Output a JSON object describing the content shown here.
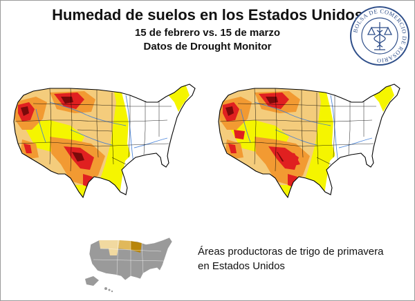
{
  "title": "Humedad de suelos en los Estados Unidos",
  "subtitle_dates": "15 de febrero vs. 15 de marzo",
  "subtitle_source": "Datos de Drought Monitor",
  "seal": {
    "text": "BOLSA DE COMERCIO DE ROSARIO",
    "color": "#2f4f8a"
  },
  "maps": [
    {
      "name": "15 de febrero"
    },
    {
      "name": "15 de marzo"
    }
  ],
  "caption": {
    "line1": "Áreas productoras de trigo de primavera",
    "line2": "en Estados Unidos"
  },
  "colors": {
    "abnormally_dry": "#f5f500",
    "moderate_drought": "#f4cc7c",
    "severe_drought": "#f29a32",
    "extreme_drought": "#e02020",
    "exceptional_drought": "#7a0a0a",
    "no_drought": "#ffffff",
    "mini_base": "#9a9a9a",
    "wheat_light": "#f1d9a0",
    "wheat_mid": "#e0b85a",
    "wheat_dark": "#b8860b"
  }
}
